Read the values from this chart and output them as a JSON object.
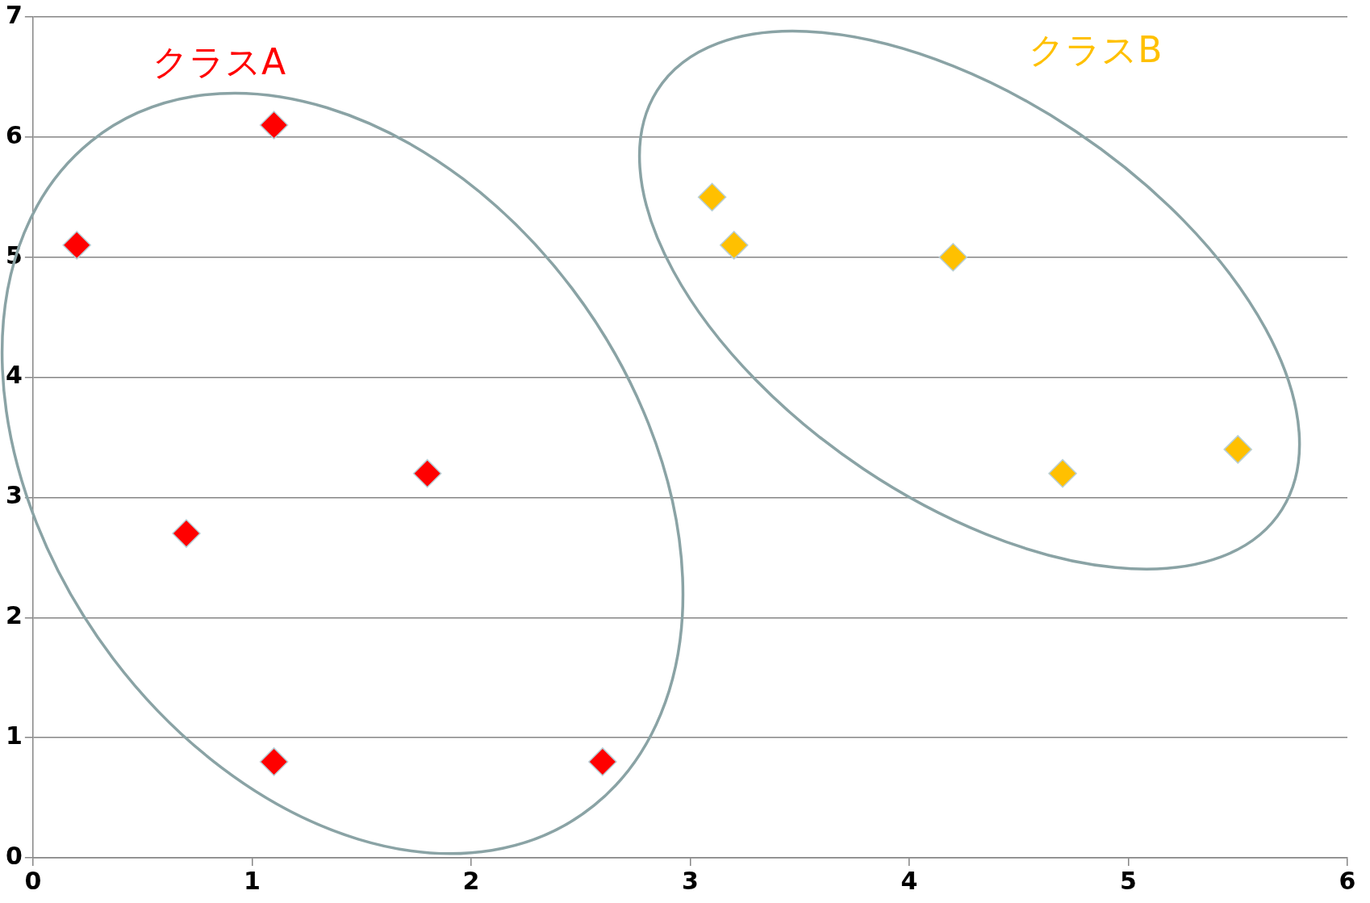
{
  "chart_data": {
    "type": "scatter",
    "marker": "diamond",
    "grid": "y",
    "legend": false,
    "xlim": [
      0,
      6
    ],
    "xticks": [
      0,
      1,
      2,
      3,
      4,
      5,
      6
    ],
    "ylim": [
      0,
      7
    ],
    "yticks": [
      0,
      1,
      2,
      3,
      4,
      5,
      6,
      7
    ],
    "series": [
      {
        "name": "クラスA",
        "color": "#ff0000",
        "x": [
          0.2,
          1.1,
          0.7,
          1.8,
          1.1,
          2.6
        ],
        "values": [
          5.1,
          6.1,
          2.7,
          3.2,
          0.8,
          0.8
        ]
      },
      {
        "name": "クラスB",
        "color": "#ffc000",
        "x": [
          3.1,
          3.2,
          4.2,
          4.7,
          5.5
        ],
        "values": [
          5.5,
          5.1,
          5.0,
          3.2,
          3.4
        ]
      }
    ]
  }
}
